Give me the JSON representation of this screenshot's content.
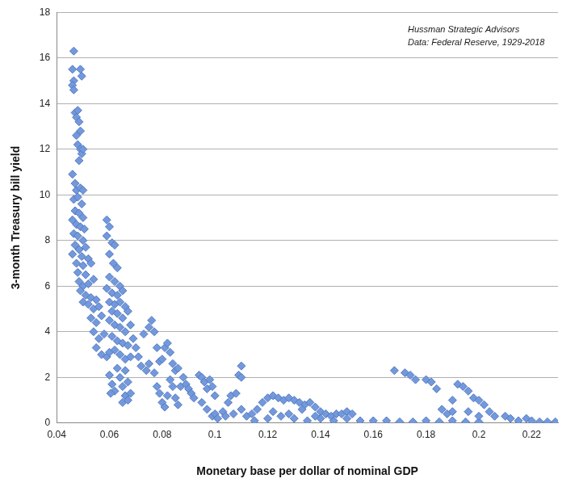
{
  "chart_data": {
    "type": "scatter",
    "annotations": [
      "Hussman Strategic Advisors",
      "Data: Federal Reserve, 1929-2018"
    ],
    "x_label": "Monetary base per dollar of nominal GDP",
    "y_label": "3-month Treasury bill yield",
    "color": "#7399dd",
    "marker": "diamond",
    "grid": "y",
    "xlim": [
      0.04,
      0.23
    ],
    "xticks": [
      0.04,
      0.06,
      0.08,
      0.1,
      0.12,
      0.14,
      0.16,
      0.18,
      0.2,
      0.22
    ],
    "ylim": [
      0,
      18
    ],
    "yticks": [
      0,
      2,
      4,
      6,
      8,
      10,
      12,
      14,
      16,
      18
    ],
    "x": [
      0.0465,
      0.046,
      0.0465,
      0.046,
      0.0465,
      0.049,
      0.0495,
      0.047,
      0.048,
      0.0475,
      0.0485,
      0.049,
      0.0475,
      0.048,
      0.049,
      0.0495,
      0.05,
      0.0485,
      0.046,
      0.047,
      0.0475,
      0.049,
      0.05,
      0.0465,
      0.048,
      0.0495,
      0.047,
      0.0485,
      0.05,
      0.046,
      0.0475,
      0.049,
      0.0505,
      0.0465,
      0.048,
      0.05,
      0.047,
      0.0485,
      0.051,
      0.046,
      0.0495,
      0.052,
      0.0475,
      0.05,
      0.053,
      0.048,
      0.051,
      0.0485,
      0.05,
      0.052,
      0.054,
      0.049,
      0.051,
      0.053,
      0.05,
      0.055,
      0.052,
      0.054,
      0.056,
      0.053,
      0.055,
      0.057,
      0.054,
      0.056,
      0.058,
      0.055,
      0.057,
      0.059,
      0.06,
      0.059,
      0.06,
      0.059,
      0.061,
      0.062,
      0.06,
      0.0615,
      0.063,
      0.06,
      0.062,
      0.064,
      0.059,
      0.061,
      0.063,
      0.065,
      0.06,
      0.062,
      0.064,
      0.066,
      0.061,
      0.063,
      0.065,
      0.067,
      0.06,
      0.062,
      0.064,
      0.066,
      0.068,
      0.061,
      0.063,
      0.065,
      0.067,
      0.069,
      0.062,
      0.064,
      0.066,
      0.068,
      0.06,
      0.061,
      0.062,
      0.0605,
      0.063,
      0.064,
      0.065,
      0.066,
      0.065,
      0.067,
      0.068,
      0.066,
      0.067,
      0.07,
      0.071,
      0.072,
      0.074,
      0.075,
      0.073,
      0.075,
      0.076,
      0.077,
      0.078,
      0.079,
      0.077,
      0.078,
      0.079,
      0.08,
      0.081,
      0.082,
      0.08,
      0.081,
      0.082,
      0.083,
      0.084,
      0.085,
      0.083,
      0.084,
      0.085,
      0.086,
      0.087,
      0.088,
      0.086,
      0.089,
      0.09,
      0.091,
      0.092,
      0.094,
      0.095,
      0.096,
      0.097,
      0.098,
      0.099,
      0.1,
      0.095,
      0.097,
      0.099,
      0.1,
      0.101,
      0.103,
      0.105,
      0.106,
      0.108,
      0.109,
      0.11,
      0.11,
      0.104,
      0.107,
      0.11,
      0.112,
      0.114,
      0.116,
      0.118,
      0.12,
      0.122,
      0.124,
      0.126,
      0.128,
      0.13,
      0.132,
      0.134,
      0.136,
      0.138,
      0.14,
      0.142,
      0.144,
      0.146,
      0.148,
      0.15,
      0.152,
      0.115,
      0.12,
      0.125,
      0.13,
      0.135,
      0.14,
      0.145,
      0.15,
      0.155,
      0.16,
      0.122,
      0.128,
      0.133,
      0.138,
      0.165,
      0.17,
      0.175,
      0.18,
      0.185,
      0.19,
      0.195,
      0.2,
      0.168,
      0.172,
      0.174,
      0.176,
      0.18,
      0.182,
      0.184,
      0.186,
      0.188,
      0.19,
      0.192,
      0.194,
      0.196,
      0.198,
      0.2,
      0.202,
      0.204,
      0.206,
      0.21,
      0.212,
      0.215,
      0.218,
      0.22,
      0.223,
      0.226,
      0.229,
      0.2,
      0.196,
      0.19
    ],
    "values": [
      16.3,
      15.5,
      15.0,
      14.8,
      14.6,
      15.5,
      15.2,
      13.6,
      13.7,
      13.4,
      13.2,
      12.8,
      12.6,
      12.2,
      12.0,
      11.8,
      12.0,
      11.5,
      10.9,
      10.5,
      10.2,
      10.3,
      10.2,
      9.8,
      9.9,
      9.6,
      9.3,
      9.2,
      9.0,
      8.9,
      8.7,
      8.6,
      8.5,
      8.3,
      8.2,
      8.0,
      7.8,
      7.6,
      7.7,
      7.4,
      7.3,
      7.2,
      7.0,
      6.9,
      7.0,
      6.6,
      6.5,
      6.2,
      6.0,
      6.1,
      6.3,
      5.8,
      5.6,
      5.5,
      5.3,
      5.4,
      5.2,
      5.0,
      5.1,
      4.6,
      4.4,
      4.7,
      4.0,
      3.7,
      3.9,
      3.3,
      3.0,
      2.9,
      3.1,
      8.9,
      8.6,
      8.2,
      7.9,
      7.8,
      7.4,
      7.0,
      6.8,
      6.4,
      6.2,
      6.0,
      5.9,
      5.7,
      5.6,
      5.8,
      5.3,
      5.2,
      5.3,
      5.1,
      4.9,
      4.8,
      4.6,
      4.9,
      4.5,
      4.3,
      4.2,
      4.0,
      4.3,
      3.8,
      3.6,
      3.5,
      3.4,
      3.7,
      3.2,
      3.0,
      2.8,
      2.9,
      2.1,
      1.7,
      1.4,
      1.3,
      2.4,
      2.0,
      1.6,
      1.2,
      0.9,
      1.0,
      1.3,
      2.3,
      1.8,
      3.3,
      2.9,
      2.5,
      2.3,
      2.6,
      3.9,
      4.2,
      4.5,
      4.0,
      3.3,
      2.7,
      2.2,
      1.6,
      1.3,
      0.9,
      0.7,
      1.2,
      2.8,
      3.3,
      3.5,
      3.1,
      2.6,
      2.3,
      1.9,
      1.6,
      1.1,
      0.8,
      1.6,
      2.0,
      2.4,
      1.7,
      1.5,
      1.3,
      1.1,
      2.1,
      2.0,
      1.8,
      1.5,
      1.9,
      1.6,
      1.2,
      0.9,
      0.6,
      0.3,
      0.4,
      0.2,
      0.5,
      0.9,
      1.2,
      1.3,
      2.1,
      2.5,
      2.0,
      0.3,
      0.4,
      0.6,
      0.3,
      0.4,
      0.6,
      0.9,
      1.1,
      1.2,
      1.1,
      1.0,
      1.1,
      1.0,
      0.9,
      0.8,
      0.9,
      0.7,
      0.5,
      0.4,
      0.3,
      0.4,
      0.4,
      0.5,
      0.4,
      0.1,
      0.2,
      0.3,
      0.2,
      0.1,
      0.2,
      0.1,
      0.2,
      0.1,
      0.1,
      0.5,
      0.4,
      0.6,
      0.3,
      0.1,
      0.05,
      0.05,
      0.1,
      0.05,
      0.1,
      0.05,
      0.05,
      2.3,
      2.2,
      2.1,
      1.9,
      1.9,
      1.8,
      1.5,
      0.6,
      0.4,
      0.5,
      1.7,
      1.6,
      1.4,
      1.1,
      1.0,
      0.8,
      0.5,
      0.3,
      0.3,
      0.2,
      0.1,
      0.2,
      0.1,
      0.05,
      0.05,
      0.05,
      0.3,
      0.5,
      1.0
    ]
  }
}
